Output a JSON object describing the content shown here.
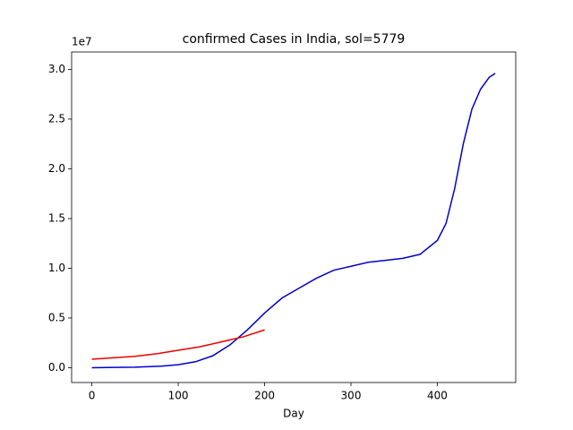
{
  "chart_data": {
    "type": "line",
    "title": "confirmed Cases in India, sol=5779",
    "x_label": "Day",
    "y_offset_label": "1e7",
    "xlim": [
      -23.4,
      490.7
    ],
    "xticks": [
      0,
      100,
      200,
      300,
      400
    ],
    "ylim": [
      -0.149,
      3.175
    ],
    "yticks": [
      {
        "value": 0,
        "label": "0.0"
      },
      0.5,
      {
        "value": 1,
        "label": "1.0"
      },
      1.5,
      {
        "value": 2,
        "label": "2.0"
      },
      2.5,
      {
        "value": 3,
        "label": "3.0"
      }
    ],
    "series": [
      {
        "color": "#0000cc",
        "x": [
          0,
          50,
          80,
          100,
          120,
          140,
          160,
          180,
          200,
          220,
          240,
          260,
          280,
          300,
          320,
          340,
          360,
          380,
          400,
          410,
          420,
          430,
          440,
          450,
          460,
          467
        ],
        "values": [
          0,
          0.005,
          0.015,
          0.03,
          0.06,
          0.12,
          0.23,
          0.38,
          0.55,
          0.7,
          0.8,
          0.9,
          0.98,
          1.02,
          1.06,
          1.08,
          1.1,
          1.14,
          1.28,
          1.45,
          1.8,
          2.25,
          2.6,
          2.8,
          2.92,
          2.96
        ]
      },
      {
        "color": "#ee0000",
        "x": [
          0,
          25,
          50,
          75,
          100,
          125,
          150,
          175,
          200
        ],
        "values": [
          0.085,
          0.1,
          0.115,
          0.14,
          0.175,
          0.21,
          0.26,
          0.31,
          0.38
        ]
      }
    ]
  }
}
